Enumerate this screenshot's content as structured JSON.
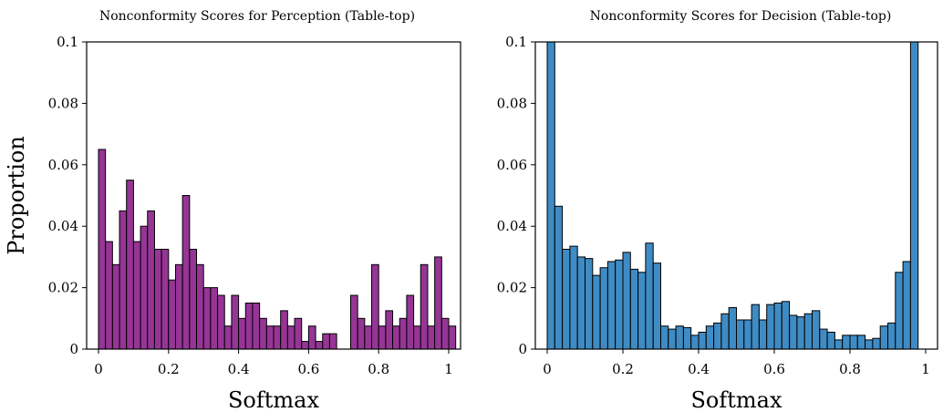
{
  "chart_data": [
    {
      "type": "bar",
      "title": "Nonconformity Scores for Perception (Table-top)",
      "xlabel": "Softmax",
      "ylabel": "Proportion",
      "xlim": [
        0,
        1
      ],
      "ylim": [
        0,
        0.1
      ],
      "bin_width": 0.02,
      "x_ticks": [
        "0",
        "0.2",
        "0.4",
        "0.6",
        "0.8",
        "1"
      ],
      "y_ticks": [
        "0",
        "0.02",
        "0.04",
        "0.06",
        "0.08",
        "0.1"
      ],
      "color": "#963596",
      "edge_color": "#000000",
      "values": [
        0.065,
        0.035,
        0.0275,
        0.045,
        0.055,
        0.035,
        0.04,
        0.045,
        0.0325,
        0.0325,
        0.0225,
        0.0275,
        0.05,
        0.0325,
        0.0275,
        0.02,
        0.02,
        0.0175,
        0.0075,
        0.0175,
        0.01,
        0.015,
        0.015,
        0.01,
        0.0075,
        0.0075,
        0.0125,
        0.0075,
        0.01,
        0.0025,
        0.0075,
        0.0025,
        0.005,
        0.005,
        0,
        0,
        0.0175,
        0.01,
        0.0075,
        0.0275,
        0.0075,
        0.0125,
        0.0075,
        0.01,
        0.0175,
        0.0075,
        0.0275,
        0.0075,
        0.03,
        0.01,
        0.0075
      ]
    },
    {
      "type": "bar",
      "title": "Nonconformity Scores for Decision (Table-top)",
      "xlabel": "Softmax",
      "ylabel": "",
      "xlim": [
        0,
        1
      ],
      "ylim": [
        0,
        0.1
      ],
      "bin_width": 0.02,
      "x_ticks": [
        "0",
        "0.2",
        "0.4",
        "0.6",
        "0.8",
        "1"
      ],
      "y_ticks": [
        "0",
        "0.02",
        "0.04",
        "0.06",
        "0.08",
        "0.1"
      ],
      "color": "#3f8bc4",
      "edge_color": "#000000",
      "values": [
        0.1,
        0.0465,
        0.0325,
        0.0335,
        0.03,
        0.0295,
        0.024,
        0.0265,
        0.0285,
        0.029,
        0.0315,
        0.026,
        0.025,
        0.0345,
        0.028,
        0.0075,
        0.0065,
        0.0075,
        0.007,
        0.0045,
        0.0055,
        0.0075,
        0.0085,
        0.0115,
        0.0135,
        0.0095,
        0.0095,
        0.0145,
        0.0095,
        0.0145,
        0.015,
        0.0155,
        0.011,
        0.0105,
        0.0115,
        0.0125,
        0.0065,
        0.0055,
        0.003,
        0.0045,
        0.0045,
        0.0045,
        0.003,
        0.0035,
        0.0075,
        0.0085,
        0.025,
        0.0285,
        0.1
      ]
    }
  ]
}
